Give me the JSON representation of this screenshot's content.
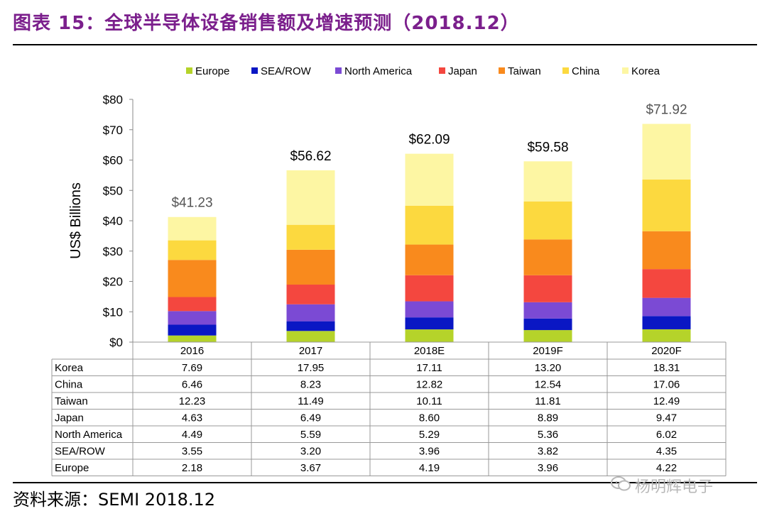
{
  "header": {
    "title": "图表 15：全球半导体设备销售额及增速预测（2018.12）"
  },
  "footer": {
    "source": "资料来源：SEMI 2018.12",
    "watermark": "杨明辉电子"
  },
  "chart_data": {
    "type": "bar",
    "stacked": true,
    "title": "",
    "xlabel": "",
    "ylabel": "US$ Billions",
    "ylim": [
      0,
      80
    ],
    "ytick_labels": [
      "$0",
      "$10",
      "$20",
      "$30",
      "$40",
      "$50",
      "$60",
      "$70",
      "$80"
    ],
    "grid": false,
    "legend_position": "top",
    "categories": [
      "2016",
      "2017",
      "2018E",
      "2019F",
      "2020F"
    ],
    "totals": [
      41.23,
      56.62,
      62.09,
      59.58,
      71.92
    ],
    "total_labels": [
      "$41.23",
      "$56.62",
      "$62.09",
      "$59.58",
      "$71.92"
    ],
    "series": [
      {
        "name": "Europe",
        "color": "#b5d32a",
        "values": [
          2.18,
          3.67,
          4.19,
          3.96,
          4.22
        ]
      },
      {
        "name": "SEA/ROW",
        "color": "#0a17c4",
        "values": [
          3.55,
          3.2,
          3.96,
          3.82,
          4.35
        ]
      },
      {
        "name": "North America",
        "color": "#7b4ad4",
        "values": [
          4.49,
          5.59,
          5.29,
          5.36,
          6.02
        ]
      },
      {
        "name": "Japan",
        "color": "#f4473f",
        "values": [
          4.63,
          6.49,
          8.6,
          8.89,
          9.47
        ]
      },
      {
        "name": "Taiwan",
        "color": "#f98a1d",
        "values": [
          12.23,
          11.49,
          10.11,
          11.81,
          12.49
        ]
      },
      {
        "name": "China",
        "color": "#fcd93f",
        "values": [
          6.46,
          8.23,
          12.82,
          12.54,
          17.06
        ]
      },
      {
        "name": "Korea",
        "color": "#fdf6a3",
        "values": [
          7.69,
          17.95,
          17.11,
          13.2,
          18.31
        ]
      }
    ],
    "table": {
      "row_order": [
        "Korea",
        "China",
        "Taiwan",
        "Japan",
        "North America",
        "SEA/ROW",
        "Europe"
      ],
      "rows": [
        {
          "label": "Korea",
          "cells": [
            "7.69",
            "17.95",
            "17.11",
            "13.20",
            "18.31"
          ]
        },
        {
          "label": "China",
          "cells": [
            "6.46",
            "8.23",
            "12.82",
            "12.54",
            "17.06"
          ]
        },
        {
          "label": "Taiwan",
          "cells": [
            "12.23",
            "11.49",
            "10.11",
            "11.81",
            "12.49"
          ]
        },
        {
          "label": "Japan",
          "cells": [
            "4.63",
            "6.49",
            "8.60",
            "8.89",
            "9.47"
          ]
        },
        {
          "label": "North America",
          "cells": [
            "4.49",
            "5.59",
            "5.29",
            "5.36",
            "6.02"
          ]
        },
        {
          "label": "SEA/ROW",
          "cells": [
            "3.55",
            "3.20",
            "3.96",
            "3.82",
            "4.35"
          ]
        },
        {
          "label": "Europe",
          "cells": [
            "2.18",
            "3.67",
            "4.19",
            "3.96",
            "4.22"
          ]
        }
      ]
    }
  }
}
